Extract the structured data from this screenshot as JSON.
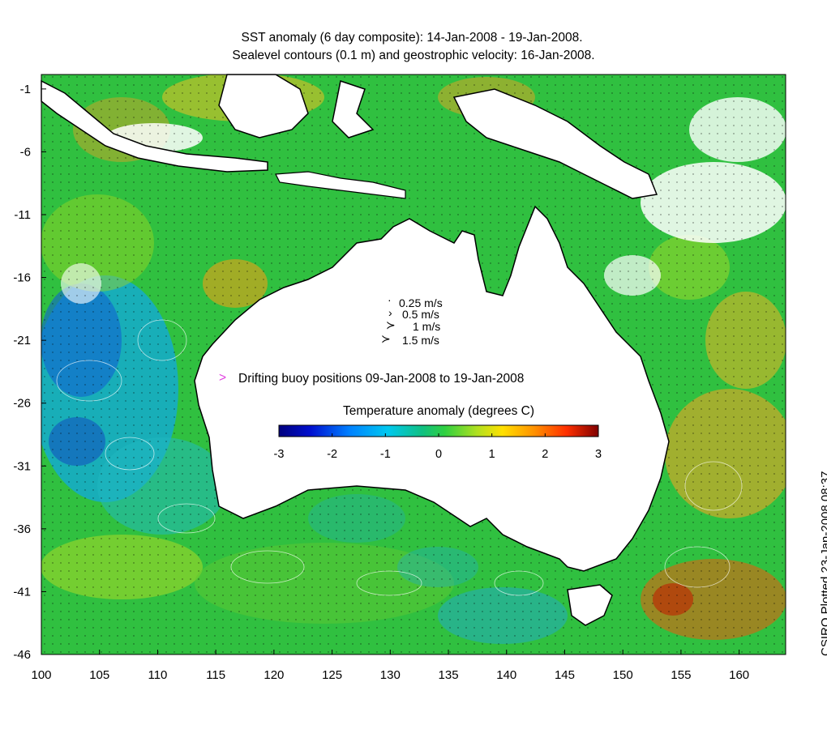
{
  "title": {
    "line1": "SST anomaly (6 day composite): 14-Jan-2008 - 19-Jan-2008.",
    "line2": "Sealevel contours (0.1 m) and geostrophic velocity: 16-Jan-2008."
  },
  "axes": {
    "y_ticks": [
      "-1",
      "-6",
      "-11",
      "-16",
      "-21",
      "-26",
      "-31",
      "-36",
      "-41",
      "-46"
    ],
    "x_ticks": [
      "100",
      "105",
      "110",
      "115",
      "120",
      "125",
      "130",
      "135",
      "140",
      "145",
      "150",
      "155",
      "160"
    ],
    "lon_range": [
      100,
      164
    ],
    "lat_range": [
      -46,
      0
    ]
  },
  "velocity_legend": {
    "items": [
      "0.25 m/s",
      "0.5 m/s",
      "1 m/s",
      "1.5 m/s"
    ],
    "marker_symbols": [
      "·",
      "›",
      "≻",
      "≻"
    ]
  },
  "buoy_legend": {
    "marker": ">",
    "label": "Drifting buoy positions 09-Jan-2008 to 19-Jan-2008",
    "marker_color": "#e040e0"
  },
  "colorbar": {
    "title": "Temperature anomaly (degrees C)",
    "ticks": [
      "-3",
      "-2",
      "-1",
      "0",
      "1",
      "2",
      "3"
    ],
    "range": [
      -3,
      3
    ],
    "colors": [
      "#00007f",
      "#0000ff",
      "#0080ff",
      "#00d0ff",
      "#20c060",
      "#40d040",
      "#a0e020",
      "#ffe000",
      "#ffa000",
      "#ff5000",
      "#d01000",
      "#7f0000"
    ]
  },
  "credit": "CSIRO Plotted 23-Jan-2008 08:37",
  "colors": {
    "land": "#ffffff",
    "coast": "#000000",
    "shelf_contour": "#000000",
    "sealevel_contours": "#ffffff",
    "buoy": "#e040e0"
  }
}
